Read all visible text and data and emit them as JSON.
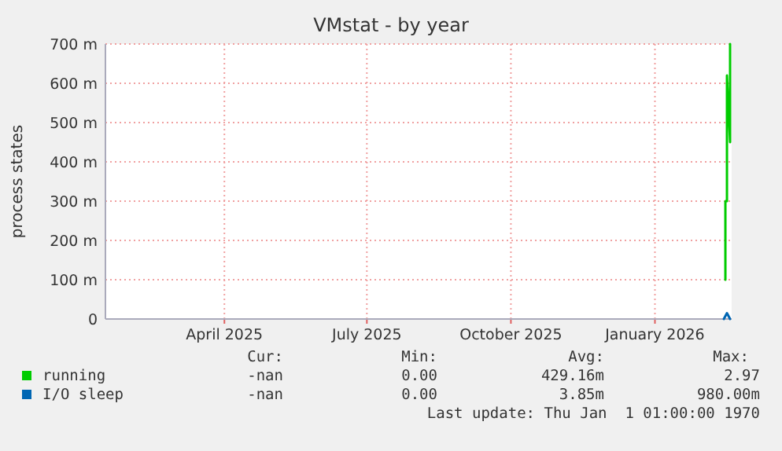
{
  "chart_data": {
    "type": "line",
    "title": "VMstat - by year",
    "ylabel": "process states",
    "x": [
      "2026-02-15",
      "2026-02-15",
      "2026-02-16",
      "2026-02-16",
      "2026-02-18",
      "2026-02-18"
    ],
    "series": [
      {
        "name": "running",
        "color": "#00cc00",
        "values": [
          100,
          300,
          300,
          620,
          450,
          700
        ]
      },
      {
        "name": "I/O sleep",
        "color": "#0066b3",
        "x": [
          "2026-02-14",
          "2026-02-16",
          "2026-02-18"
        ],
        "values": [
          0,
          15,
          0
        ]
      }
    ],
    "xlim": [
      "2025-01-15",
      "2026-02-19"
    ],
    "xticks": [
      {
        "value": "2025-04-01",
        "label": "April 2025"
      },
      {
        "value": "2025-07-01",
        "label": "July 2025"
      },
      {
        "value": "2025-10-01",
        "label": "October 2025"
      },
      {
        "value": "2026-01-01",
        "label": "January 2026"
      }
    ],
    "ylim": [
      0,
      700
    ],
    "yticks": [
      0,
      {
        "value": 100,
        "label": "100 m"
      },
      {
        "value": 200,
        "label": "200 m"
      },
      {
        "value": 300,
        "label": "300 m"
      },
      {
        "value": 400,
        "label": "400 m"
      },
      {
        "value": 500,
        "label": "500 m"
      },
      {
        "value": 600,
        "label": "600 m"
      },
      {
        "value": 700,
        "label": "700 m"
      }
    ],
    "grid": true,
    "legend": "bottom",
    "line_style": "solid",
    "annotations": [
      "Cur:",
      "Min:",
      "Avg:",
      "Max:",
      "-nan",
      "0.00",
      "429.16m",
      "2.97",
      "-nan",
      "0.00",
      "3.85m",
      "980.00m",
      "Last update: Thu Jan  1 01:00:00 1970"
    ]
  }
}
